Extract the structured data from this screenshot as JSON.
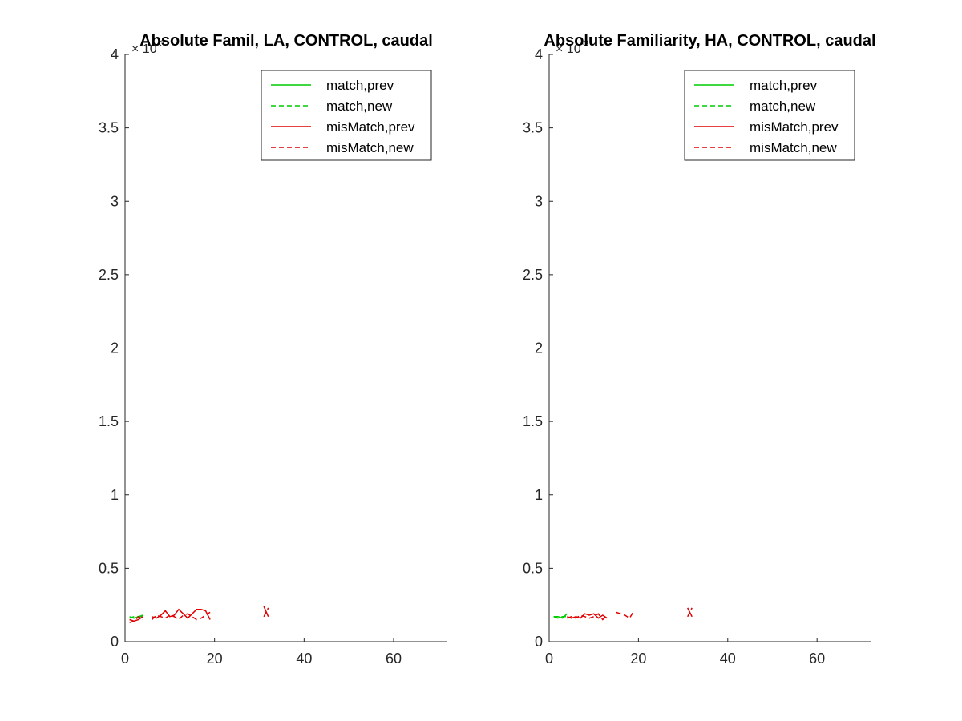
{
  "chart_data": [
    {
      "type": "line",
      "title": "Absolute Famil, LA, CONTROL, caudal",
      "xlabel": "",
      "ylabel": "",
      "xlim": [
        0,
        72
      ],
      "ylim": [
        0,
        4
      ],
      "y_exponent": "× 10^-3",
      "x_ticks": [
        "0",
        "20",
        "40",
        "60"
      ],
      "y_ticks": [
        "0",
        "0.5",
        "1",
        "1.5",
        "2",
        "2.5",
        "3",
        "3.5",
        "4"
      ],
      "legend_position": "top-right",
      "grid": false,
      "series": [
        {
          "name": "match,prev",
          "color": "#00cc00",
          "dash": "solid",
          "x": [
            1,
            2,
            3,
            4
          ],
          "y": [
            0.17,
            0.16,
            0.17,
            0.18
          ]
        },
        {
          "name": "match,new",
          "color": "#00cc00",
          "dash": "dashed",
          "x": [
            1,
            2,
            3,
            4
          ],
          "y": [
            0.16,
            0.17,
            0.17,
            0.17
          ]
        },
        {
          "name": "misMatch,prev",
          "color": "#e00000",
          "dash": "solid",
          "x": [
            1,
            2,
            3,
            4,
            null,
            6,
            7,
            8,
            9,
            10,
            11,
            12,
            13,
            14,
            15,
            16,
            17,
            18,
            19,
            null,
            31,
            32
          ],
          "y": [
            0.13,
            0.14,
            0.15,
            0.17,
            null,
            0.17,
            0.16,
            0.18,
            0.21,
            0.17,
            0.18,
            0.22,
            0.19,
            0.16,
            0.19,
            0.22,
            0.22,
            0.21,
            0.15,
            null,
            0.24,
            0.17
          ]
        },
        {
          "name": "misMatch,new",
          "color": "#e00000",
          "dash": "dashed",
          "x": [
            1,
            2,
            3,
            4,
            null,
            6,
            7,
            8,
            9,
            10,
            11,
            12,
            13,
            14,
            15,
            16,
            17,
            18,
            19,
            null,
            31,
            32
          ],
          "y": [
            0.15,
            0.14,
            0.17,
            0.15,
            null,
            0.15,
            0.18,
            0.17,
            0.16,
            0.18,
            0.17,
            0.15,
            0.18,
            0.19,
            0.17,
            0.15,
            0.16,
            0.18,
            0.2,
            null,
            0.17,
            0.23
          ]
        }
      ]
    },
    {
      "type": "line",
      "title": "Absolute Familiarity, HA, CONTROL, caudal",
      "xlabel": "",
      "ylabel": "",
      "xlim": [
        0,
        72
      ],
      "ylim": [
        0,
        4
      ],
      "y_exponent": "× 10^-3",
      "x_ticks": [
        "0",
        "20",
        "40",
        "60"
      ],
      "y_ticks": [
        "0",
        "0.5",
        "1",
        "1.5",
        "2",
        "2.5",
        "3",
        "3.5",
        "4"
      ],
      "legend_position": "top-right",
      "grid": false,
      "series": [
        {
          "name": "match,prev",
          "color": "#00cc00",
          "dash": "solid",
          "x": [
            1,
            2,
            3,
            4
          ],
          "y": [
            0.17,
            0.17,
            0.16,
            0.19
          ]
        },
        {
          "name": "match,new",
          "color": "#00cc00",
          "dash": "dashed",
          "x": [
            1,
            2,
            3,
            4
          ],
          "y": [
            0.17,
            0.16,
            0.17,
            0.17
          ]
        },
        {
          "name": "misMatch,prev",
          "color": "#e00000",
          "dash": "solid",
          "x": [
            4,
            5,
            6,
            7,
            8,
            9,
            10,
            11,
            12,
            13,
            null,
            31,
            32
          ],
          "y": [
            0.17,
            0.16,
            0.17,
            0.16,
            0.19,
            0.18,
            0.19,
            0.16,
            0.18,
            0.16,
            null,
            0.23,
            0.17
          ]
        },
        {
          "name": "misMatch,new",
          "color": "#e00000",
          "dash": "dashed",
          "x": [
            4,
            5,
            6,
            7,
            8,
            9,
            10,
            11,
            12,
            13,
            null,
            15,
            16,
            17,
            18,
            19,
            null,
            31,
            32
          ],
          "y": [
            0.16,
            0.17,
            0.16,
            0.18,
            0.17,
            0.16,
            0.17,
            0.19,
            0.15,
            0.18,
            null,
            0.2,
            0.19,
            0.18,
            0.16,
            0.21,
            null,
            0.17,
            0.23
          ]
        }
      ]
    }
  ]
}
